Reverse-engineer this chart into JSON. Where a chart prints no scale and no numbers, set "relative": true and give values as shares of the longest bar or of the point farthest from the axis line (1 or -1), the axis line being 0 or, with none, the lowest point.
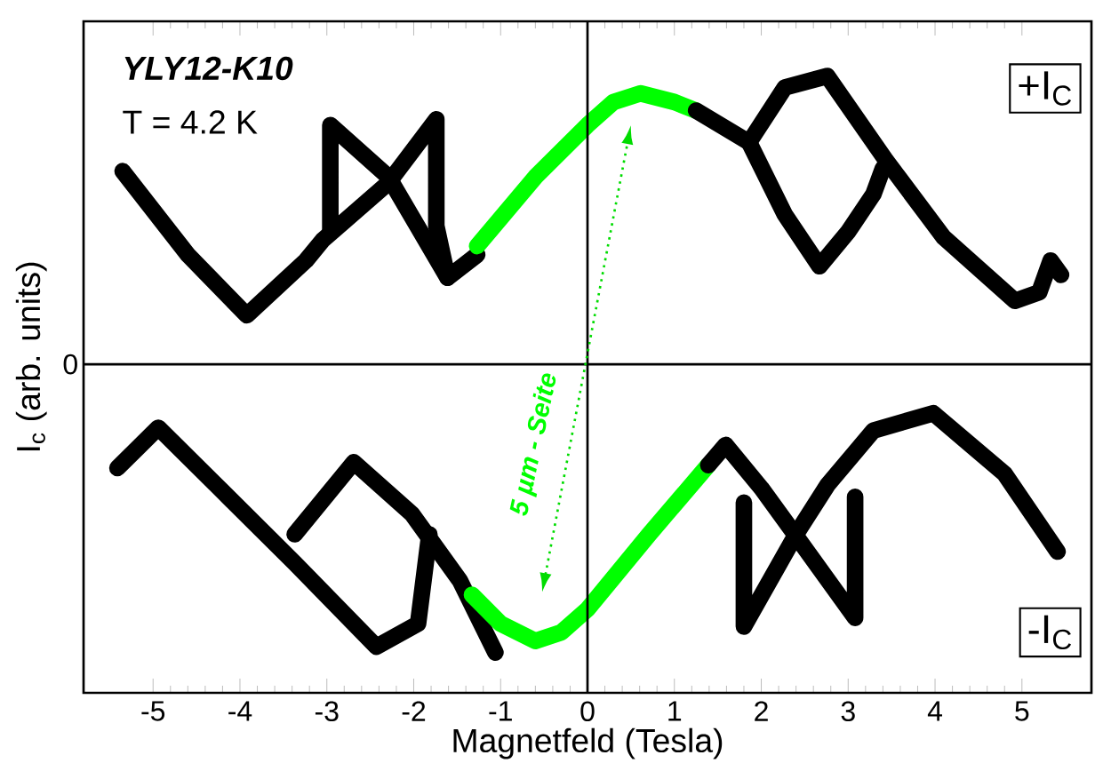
{
  "chart_data": {
    "type": "line",
    "relative": true,
    "xlabel": "Magnetfeld (Tesla)",
    "ylabel": "I$_{c}$ (arb. units)",
    "xlim": [
      -5.8,
      5.8
    ],
    "xticks": [
      -5,
      -4,
      -3,
      -2,
      -1,
      0,
      1,
      2,
      3,
      4,
      5
    ],
    "grid": false,
    "marker": "none",
    "line_style": "solid",
    "ref_lines": [
      {
        "axis": "x",
        "value": 0
      },
      {
        "axis": "y",
        "value": 0,
        "label": "0"
      }
    ],
    "annotations": [
      "YLY12-K10",
      "T = 4.2 K",
      "+I$_{C}$",
      "-I$_{C}$",
      "5 µm - Seite"
    ],
    "series": [
      {
        "color": "#000000",
        "x": [
          -5.35,
          -4.6,
          -3.92,
          -3.24,
          -3.05,
          -2.29,
          -1.74,
          -1.74,
          -1.61,
          -1.27
        ],
        "values": [
          0.67,
          0.38,
          0.17,
          0.36,
          0.43,
          0.63,
          0.85,
          0.48,
          0.3,
          0.38
        ]
      },
      {
        "color": "#000000",
        "x": [
          -2.96,
          -2.96,
          -2.29,
          -1.61
        ],
        "values": [
          0.46,
          0.83,
          0.65,
          0.3
        ]
      },
      {
        "color": "#00ff00",
        "x": [
          -1.27,
          -0.6,
          0,
          0.3,
          0.61,
          1.0,
          1.25
        ],
        "values": [
          0.41,
          0.65,
          0.83,
          0.91,
          0.94,
          0.91,
          0.88
        ]
      },
      {
        "color": "#000000",
        "x": [
          1.25,
          1.86,
          2.27,
          2.76,
          3.43,
          4.1,
          4.92,
          5.2,
          5.33,
          5.45
        ],
        "values": [
          0.88,
          0.77,
          0.96,
          1.0,
          0.71,
          0.44,
          0.22,
          0.25,
          0.36,
          0.31
        ]
      },
      {
        "color": "#000000",
        "x": [
          1.86,
          2.27,
          2.67,
          3.0,
          3.29,
          3.4
        ],
        "values": [
          0.77,
          0.52,
          0.34,
          0.46,
          0.59,
          0.68
        ]
      },
      {
        "color": "#000000",
        "x": [
          -5.41,
          -4.94,
          -4.27,
          -3.37,
          -2.43,
          -1.95,
          -1.82
        ],
        "values": [
          -0.36,
          -0.22,
          -0.42,
          -0.69,
          -0.98,
          -0.9,
          -0.59
        ]
      },
      {
        "color": "#000000",
        "x": [
          -3.37,
          -2.69,
          -2.02,
          -1.47,
          -1.06
        ],
        "values": [
          -0.59,
          -0.34,
          -0.52,
          -0.75,
          -1.0
        ]
      },
      {
        "color": "#00ff00",
        "x": [
          -1.33,
          -1.0,
          -0.6,
          -0.3,
          0,
          0.71,
          1.39
        ],
        "values": [
          -0.8,
          -0.9,
          -0.96,
          -0.93,
          -0.85,
          -0.59,
          -0.35
        ]
      },
      {
        "color": "#000000",
        "x": [
          1.39,
          1.59,
          2.0,
          2.41,
          3.08,
          3.08
        ],
        "values": [
          -0.35,
          -0.28,
          -0.43,
          -0.6,
          -0.88,
          -0.46
        ]
      },
      {
        "color": "#000000",
        "x": [
          1.8,
          1.8,
          2.4,
          2.76,
          3.29,
          3.98,
          4.8,
          5.41
        ],
        "values": [
          -0.48,
          -0.91,
          -0.59,
          -0.42,
          -0.23,
          -0.17,
          -0.38,
          -0.65
        ]
      }
    ]
  }
}
